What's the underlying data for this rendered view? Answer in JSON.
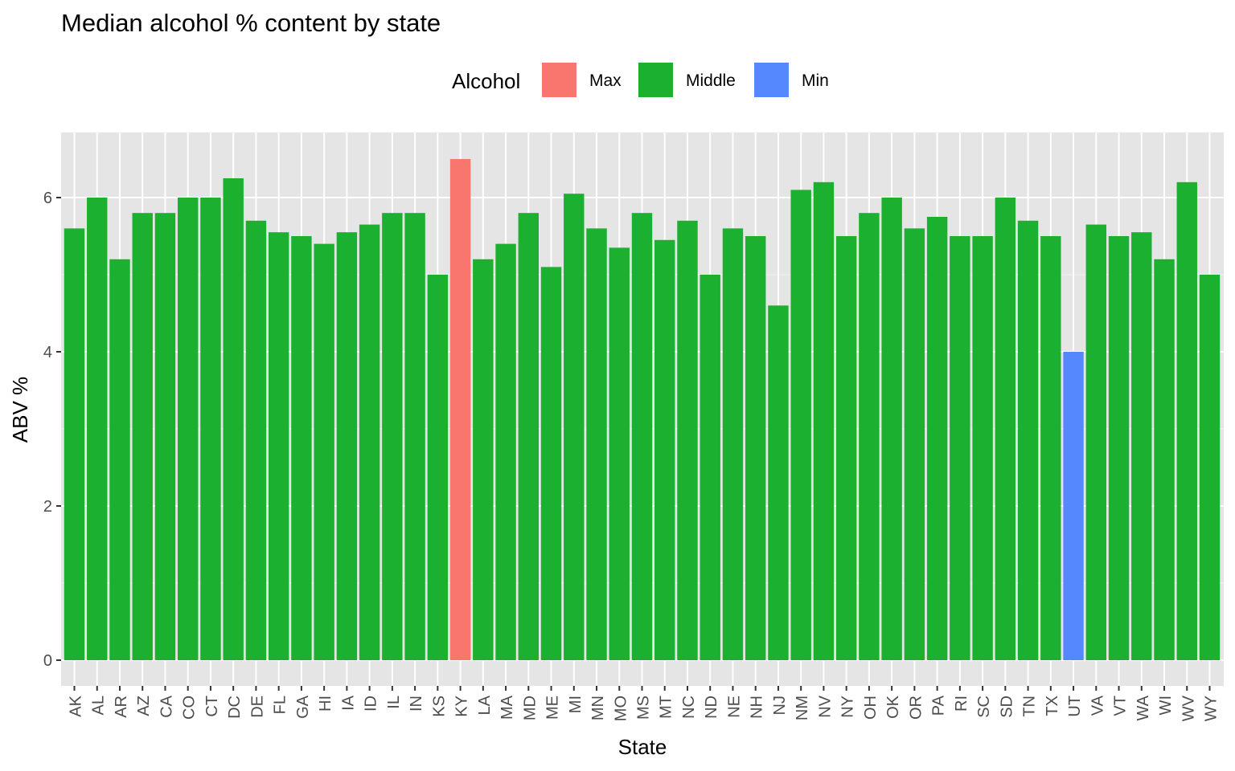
{
  "chart_data": {
    "type": "bar",
    "title": "Median alcohol % content by state",
    "xlabel": "State",
    "ylabel": "ABV %",
    "ylim": [
      0,
      6.8
    ],
    "yticks": [
      0,
      2,
      4,
      6
    ],
    "grid": true,
    "legend": {
      "title": "Alcohol",
      "placement": "top",
      "entries": [
        {
          "label": "Max",
          "color": "#F8766D"
        },
        {
          "label": "Middle",
          "color": "#1BB02F"
        },
        {
          "label": "Min",
          "color": "#5588FF"
        }
      ]
    },
    "categories": [
      "AK",
      "AL",
      "AR",
      "AZ",
      "CA",
      "CO",
      "CT",
      "DC",
      "DE",
      "FL",
      "GA",
      "HI",
      "IA",
      "ID",
      "IL",
      "IN",
      "KS",
      "KY",
      "LA",
      "MA",
      "MD",
      "ME",
      "MI",
      "MN",
      "MO",
      "MS",
      "MT",
      "NC",
      "ND",
      "NE",
      "NH",
      "NJ",
      "NM",
      "NV",
      "NY",
      "OH",
      "OK",
      "OR",
      "PA",
      "RI",
      "SC",
      "SD",
      "TN",
      "TX",
      "UT",
      "VA",
      "VT",
      "WA",
      "WI",
      "WV",
      "WY"
    ],
    "values": [
      5.6,
      6.0,
      5.2,
      5.8,
      5.8,
      6.0,
      6.0,
      6.25,
      5.7,
      5.55,
      5.5,
      5.4,
      5.55,
      5.65,
      5.8,
      5.8,
      5.0,
      6.5,
      5.2,
      5.4,
      5.8,
      5.1,
      6.05,
      5.6,
      5.35,
      5.8,
      5.45,
      5.7,
      5.0,
      5.6,
      5.5,
      4.6,
      6.1,
      6.2,
      5.5,
      5.8,
      6.0,
      5.6,
      5.75,
      5.5,
      5.5,
      6.0,
      5.7,
      5.5,
      4.0,
      5.65,
      5.5,
      5.55,
      5.2,
      6.2,
      5.0
    ],
    "groups": [
      "Middle",
      "Middle",
      "Middle",
      "Middle",
      "Middle",
      "Middle",
      "Middle",
      "Middle",
      "Middle",
      "Middle",
      "Middle",
      "Middle",
      "Middle",
      "Middle",
      "Middle",
      "Middle",
      "Middle",
      "Max",
      "Middle",
      "Middle",
      "Middle",
      "Middle",
      "Middle",
      "Middle",
      "Middle",
      "Middle",
      "Middle",
      "Middle",
      "Middle",
      "Middle",
      "Middle",
      "Middle",
      "Middle",
      "Middle",
      "Middle",
      "Middle",
      "Middle",
      "Middle",
      "Middle",
      "Middle",
      "Middle",
      "Middle",
      "Middle",
      "Middle",
      "Min",
      "Middle",
      "Middle",
      "Middle",
      "Middle",
      "Middle",
      "Middle"
    ]
  },
  "colors": {
    "panel_background": "#E5E5E5",
    "grid_major": "#FFFFFF",
    "text": "#000000",
    "tick_text": "#4D4D4D"
  }
}
